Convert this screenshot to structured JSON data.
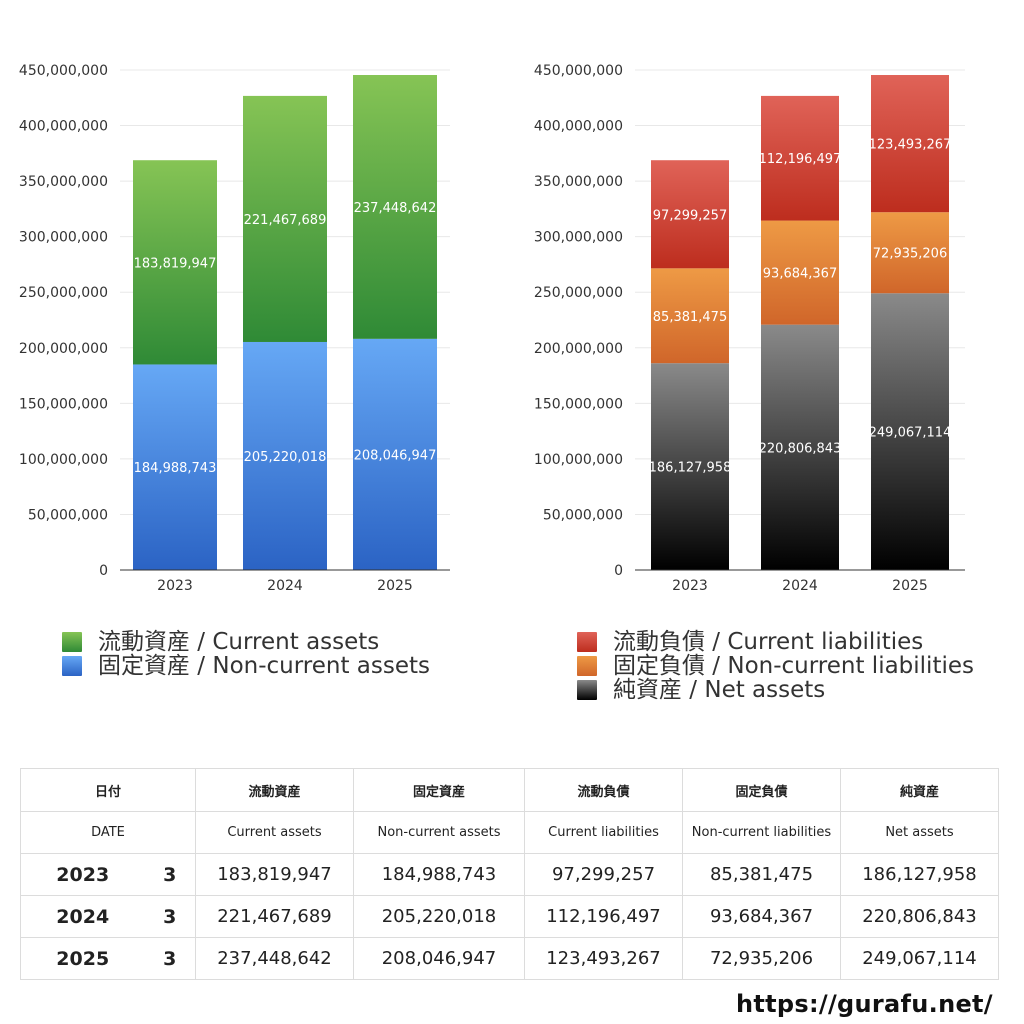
{
  "chart_data": [
    {
      "type": "bar",
      "stacked": true,
      "categories": [
        "2023",
        "2024",
        "2025"
      ],
      "ylim": [
        0,
        450000000
      ],
      "yticks": [
        "0",
        "50,000,000",
        "100,000,000",
        "150,000,000",
        "200,000,000",
        "250,000,000",
        "300,000,000",
        "350,000,000",
        "400,000,000",
        "450,000,000"
      ],
      "grid": true,
      "legend_position": "bottom",
      "series": [
        {
          "name": "固定資産 / Non-current assets",
          "values": [
            184988743,
            205220018,
            208046947
          ],
          "labels": [
            "184,988,743",
            "205,220,018",
            "208,046,947"
          ],
          "color_top": "#66a8f5",
          "color_bottom": "#2b63c4"
        },
        {
          "name": "流動資産 / Current assets",
          "values": [
            183819947,
            221467689,
            237448642
          ],
          "labels": [
            "183,819,947",
            "221,467,689",
            "237,448,642"
          ],
          "color_top": "#86c455",
          "color_bottom": "#2f8a36"
        }
      ]
    },
    {
      "type": "bar",
      "stacked": true,
      "categories": [
        "2023",
        "2024",
        "2025"
      ],
      "ylim": [
        0,
        450000000
      ],
      "yticks": [
        "0",
        "50,000,000",
        "100,000,000",
        "150,000,000",
        "200,000,000",
        "250,000,000",
        "300,000,000",
        "350,000,000",
        "400,000,000",
        "450,000,000"
      ],
      "grid": true,
      "legend_position": "bottom",
      "series": [
        {
          "name": "純資産 / Net assets",
          "values": [
            186127958,
            220806843,
            249067114
          ],
          "labels": [
            "186,127,958",
            "220,806,843",
            "249,067,114"
          ],
          "color_top": "#8a8a8a",
          "color_bottom": "#000000"
        },
        {
          "name": "固定負債 / Non-current liabilities",
          "values": [
            85381475,
            93684367,
            72935206
          ],
          "labels": [
            "85,381,475",
            "93,684,367",
            "72,935,206"
          ],
          "color_top": "#ee9a45",
          "color_bottom": "#d0662a"
        },
        {
          "name": "流動負債 / Current liabilities",
          "values": [
            97299257,
            112196497,
            123493267
          ],
          "labels": [
            "97,299,257",
            "112,196,497",
            "123,493,267"
          ],
          "color_top": "#e06358",
          "color_bottom": "#bd2d1e"
        }
      ]
    }
  ],
  "legends": {
    "left": [
      {
        "label": "流動資産 / Current assets",
        "color": "#5ea83f"
      },
      {
        "label": "固定資産 / Non-current assets",
        "color": "#4a88e0"
      }
    ],
    "right": [
      {
        "label": "流動負債 / Current liabilities",
        "color": "#cf4234"
      },
      {
        "label": "固定負債 / Non-current liabilities",
        "color": "#e2843a"
      },
      {
        "label": "純資産 / Net assets",
        "color": "#333333"
      }
    ]
  },
  "table": {
    "header_jp": {
      "date": "日付",
      "ca": "流動資産",
      "nca": "固定資産",
      "cl": "流動負債",
      "ncl": "固定負債",
      "na": "純資産"
    },
    "header_en": {
      "date": "DATE",
      "ca": "Current assets",
      "nca": "Non-current assets",
      "cl": "Current liabilities",
      "ncl": "Non-current liabilities",
      "na": "Net assets"
    },
    "rows": [
      {
        "year": "2023",
        "month": "3",
        "ca": "183,819,947",
        "nca": "184,988,743",
        "cl": "97,299,257",
        "ncl": "85,381,475",
        "na": "186,127,958"
      },
      {
        "year": "2024",
        "month": "3",
        "ca": "221,467,689",
        "nca": "205,220,018",
        "cl": "112,196,497",
        "ncl": "93,684,367",
        "na": "220,806,843"
      },
      {
        "year": "2025",
        "month": "3",
        "ca": "237,448,642",
        "nca": "208,046,947",
        "cl": "123,493,267",
        "ncl": "72,935,206",
        "na": "249,067,114"
      }
    ]
  },
  "site_url": "https://gurafu.net/"
}
